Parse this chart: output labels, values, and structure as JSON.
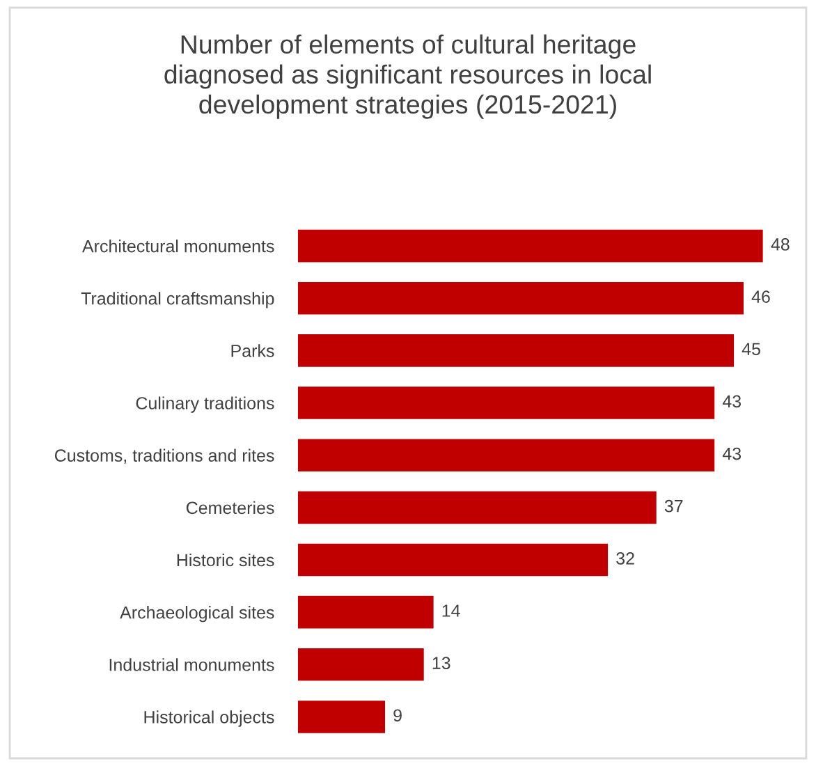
{
  "chart_data": {
    "type": "bar",
    "orientation": "horizontal",
    "title": "Number of elements of cultural heritage\ndiagnosed as significant resources in local\ndevelopment strategies (2015-2021)",
    "categories": [
      "Architectural monuments",
      "Traditional craftsmanship",
      "Parks",
      "Culinary traditions",
      "Customs, traditions and rites",
      "Cemeteries",
      "Historic sites",
      "Archaeological sites",
      "Industrial monuments",
      "Historical objects"
    ],
    "values": [
      48,
      46,
      45,
      43,
      43,
      37,
      32,
      14,
      13,
      9
    ],
    "color": "#c00000",
    "data_labels": true
  }
}
